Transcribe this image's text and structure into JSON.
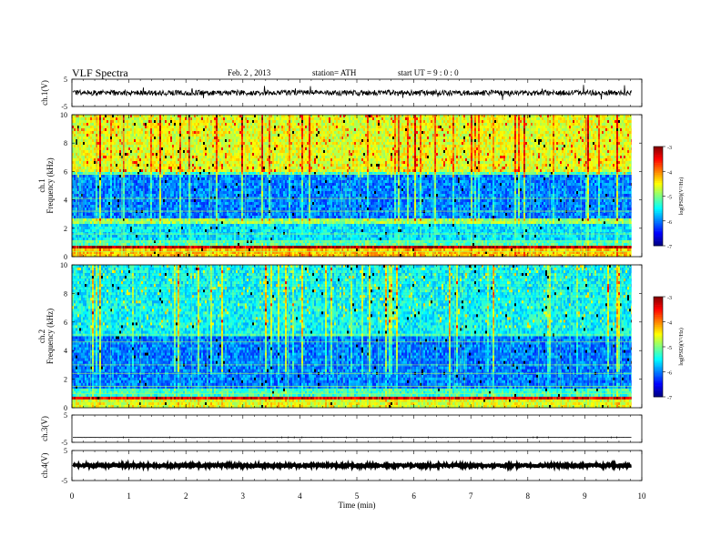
{
  "header": {
    "title": "VLF  Spectra",
    "date": "Feb. 2  , 2013",
    "station": "station= ATH",
    "start": "start  UT  =    9  : 0  : 0"
  },
  "chart_data": [
    {
      "type": "line",
      "name": "ch1-waveform",
      "ylabel": "ch.1(V)",
      "ylim": [
        -5,
        5
      ],
      "yticks": [
        5,
        -5
      ],
      "xlim": [
        0,
        10
      ],
      "x_extent": [
        0,
        9.82
      ],
      "baseline": 0,
      "amplitude_typical": 1,
      "amplitude_spikes": 3
    },
    {
      "type": "heatmap",
      "name": "ch1-spectrogram",
      "ylabel": "Frequency  (kHz)",
      "channel_label": "ch.1",
      "ylim": [
        0,
        10
      ],
      "yticks": [
        0,
        2,
        4,
        6,
        8,
        10
      ],
      "xlim": [
        0,
        10
      ],
      "x_extent": [
        0,
        9.82
      ],
      "colorbar": {
        "label": "log(PSD)(V²/Hz)",
        "range": [
          -7,
          -3
        ],
        "ticks": [
          -3,
          -4,
          -5,
          -6,
          -7
        ]
      },
      "bands_khz": [
        {
          "from": 0,
          "to": 0.5,
          "level": -4.3
        },
        {
          "from": 0.5,
          "to": 0.75,
          "level": -3.2
        },
        {
          "from": 0.75,
          "to": 1.2,
          "level": -5.2
        },
        {
          "from": 1.2,
          "to": 2.4,
          "level": -5.6
        },
        {
          "from": 2.4,
          "to": 2.6,
          "level": -4.9
        },
        {
          "from": 2.6,
          "to": 5.8,
          "level": -6.0
        },
        {
          "from": 5.8,
          "to": 6.0,
          "level": -5.3
        },
        {
          "from": 6.0,
          "to": 10,
          "level": -4.6
        }
      ]
    },
    {
      "type": "heatmap",
      "name": "ch2-spectrogram",
      "ylabel": "Frequency  (kHz)",
      "channel_label": "ch.2",
      "ylim": [
        0,
        10
      ],
      "yticks": [
        0,
        2,
        4,
        6,
        8,
        10
      ],
      "xlim": [
        0,
        10
      ],
      "x_extent": [
        0,
        9.82
      ],
      "colorbar": {
        "label": "log(PSD)(V²/Hz)",
        "range": [
          -7,
          -3
        ],
        "ticks": [
          -3,
          -4,
          -5,
          -6,
          -7
        ]
      },
      "bands_khz": [
        {
          "from": 0,
          "to": 0.5,
          "level": -4.6
        },
        {
          "from": 0.5,
          "to": 0.8,
          "level": -3.4
        },
        {
          "from": 0.8,
          "to": 1.3,
          "level": -5.3
        },
        {
          "from": 1.3,
          "to": 5.0,
          "level": -6.0
        },
        {
          "from": 5.0,
          "to": 5.2,
          "level": -5.4
        },
        {
          "from": 5.2,
          "to": 10,
          "level": -5.5
        }
      ]
    },
    {
      "type": "line",
      "name": "ch3-waveform",
      "ylabel": "ch.3(V)",
      "ylim": [
        -5,
        5
      ],
      "yticks": [
        5,
        -5
      ],
      "xlim": [
        0,
        10
      ],
      "x_extent": [
        0,
        9.82
      ],
      "baseline": -3.2,
      "amplitude_typical": 0.05
    },
    {
      "type": "line",
      "name": "ch4-waveform",
      "ylabel": "ch.4(V)",
      "ylim": [
        -5,
        5
      ],
      "yticks": [
        5,
        -5
      ],
      "xlim": [
        0,
        10
      ],
      "x_extent": [
        0,
        9.82
      ],
      "baseline": 0,
      "amplitude_typical": 0.4
    }
  ],
  "xaxis": {
    "label": "Time  (min)",
    "ticks": [
      0,
      1,
      2,
      3,
      4,
      5,
      6,
      7,
      8,
      9,
      10
    ]
  }
}
